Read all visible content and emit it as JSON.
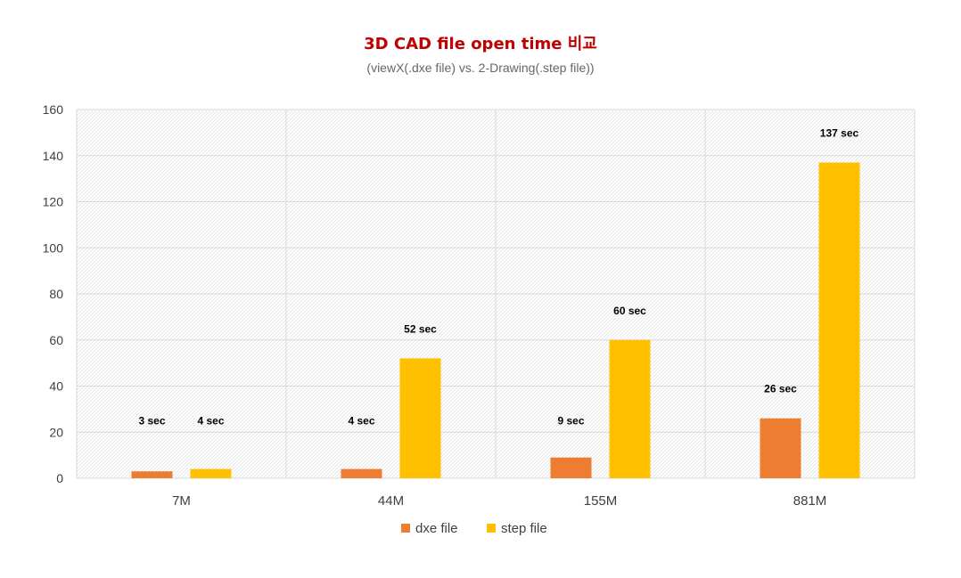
{
  "chart_data": {
    "type": "bar",
    "title": "3D CAD file open time 비교",
    "subtitle": "(viewX(.dxe file) vs. 2-Drawing(.step file))",
    "xlabel": "",
    "ylabel": "",
    "categories": [
      "7M",
      "44M",
      "155M",
      "881M"
    ],
    "series": [
      {
        "name": "dxe file",
        "color": "#ED7D31",
        "values": [
          3,
          4,
          9,
          26
        ],
        "labels": [
          "3 sec",
          "4 sec",
          "9 sec",
          "26 sec"
        ]
      },
      {
        "name": "step file",
        "color": "#FFC000",
        "values": [
          4,
          52,
          60,
          137
        ],
        "labels": [
          "4 sec",
          "52 sec",
          "60 sec",
          "137 sec"
        ]
      }
    ],
    "ylim": [
      0,
      160
    ],
    "yticks": [
      0,
      20,
      40,
      60,
      80,
      100,
      120,
      140,
      160
    ],
    "grid": true,
    "legend": "bottom",
    "title_color": "#C00000"
  }
}
